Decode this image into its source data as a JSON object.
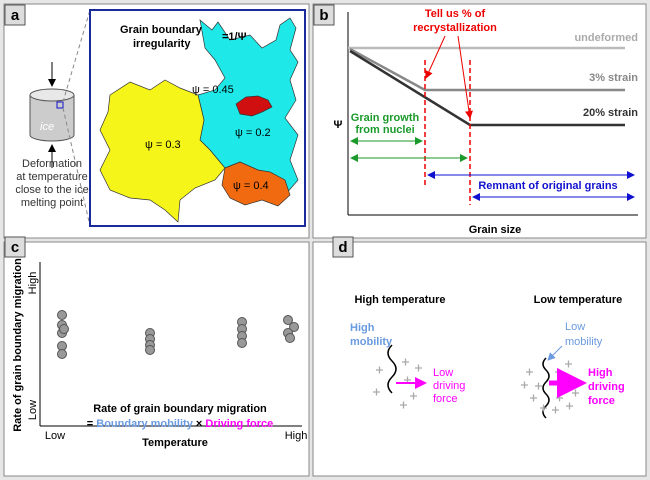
{
  "panels": {
    "a": {
      "label": "a",
      "title": [
        "Grain boundary",
        "irregularity"
      ],
      "formula": "=1/Ψ",
      "cylinder_label": "ice",
      "caption": [
        "Deformation",
        "at temperature",
        "close to the ice",
        "melting point"
      ],
      "grains": [
        "ψ = 0.45",
        "ψ = 0.3",
        "ψ = 0.2",
        "ψ = 0.4"
      ]
    },
    "b": {
      "label": "b",
      "callout": [
        "Tell us % of",
        "recrystallization"
      ],
      "curves": [
        "undeformed",
        "3% strain",
        "20% strain"
      ],
      "y_label": "Ψ",
      "growth": [
        "Grain growth",
        "from nuclei"
      ],
      "remnant": "Remnant of original grains",
      "x_label": "Grain size"
    },
    "c": {
      "label": "c",
      "y_label": "Rate of grain boundary migration",
      "y_high": "High",
      "y_low": "Low",
      "x_low": "Low",
      "x_high": "High",
      "x_label": "Temperature",
      "equation_title": "Rate of grain boundary migration",
      "equation": [
        "=",
        "Boundary mobility",
        "×",
        "Driving force"
      ]
    },
    "d": {
      "label": "d",
      "high": {
        "title": "High temperature",
        "mobility": [
          "High",
          "mobility"
        ],
        "force": [
          "Low",
          "driving",
          "force"
        ]
      },
      "low": {
        "title": "Low temperature",
        "mobility": [
          "Low",
          "mobility"
        ],
        "force": [
          "High",
          "driving",
          "force"
        ]
      }
    }
  }
}
